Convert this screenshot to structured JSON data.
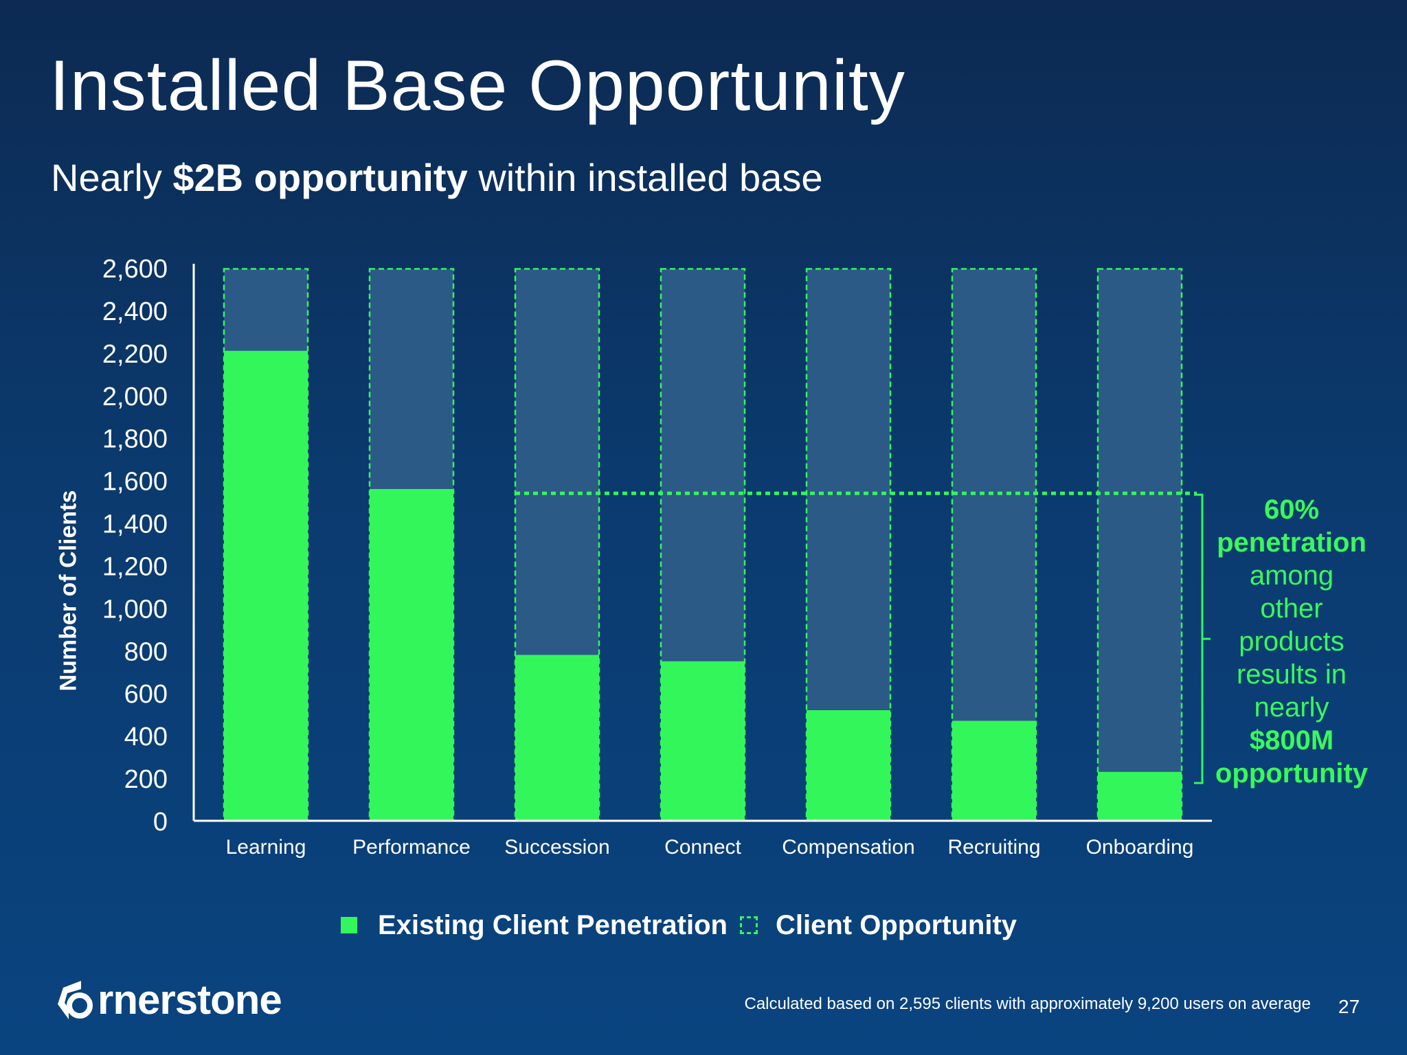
{
  "header": {
    "title": "Installed Base Opportunity",
    "subtitle_pre": "Nearly ",
    "subtitle_bold": "$2B opportunity",
    "subtitle_post": " within installed base"
  },
  "chart_data": {
    "type": "bar",
    "ylabel": "Number of Clients",
    "ylim": [
      0,
      2600
    ],
    "yticks": [
      "0",
      "200",
      "400",
      "600",
      "800",
      "1,000",
      "1,200",
      "1,400",
      "1,600",
      "1,800",
      "2,000",
      "2,200",
      "2,400",
      "2,600"
    ],
    "categories": [
      "Learning",
      "Performance",
      "Succession",
      "Connect",
      "Compensation",
      "Recruiting",
      "Onboarding"
    ],
    "series": [
      {
        "name": "Existing Client Penetration",
        "values": [
          2210,
          1560,
          780,
          750,
          520,
          470,
          230
        ]
      },
      {
        "name": "Client Opportunity",
        "values": [
          2595,
          2595,
          2595,
          2595,
          2595,
          2595,
          2595
        ]
      }
    ],
    "penetration_line": 1540,
    "colors": {
      "existing": "#33f75a",
      "opportunity_fill": "#2b5a87",
      "opportunity_border": "#33f75a"
    }
  },
  "annotation": {
    "line1": "60%",
    "line2": "penetration",
    "line3": "among",
    "line4": "other",
    "line5": "products",
    "line6": "results in",
    "line7": "nearly",
    "line8": "$800M",
    "line9": "opportunity"
  },
  "legend": {
    "existing": "Existing Client Penetration",
    "opportunity": "Client Opportunity"
  },
  "footer": {
    "logo_text": "rnerstone",
    "note": "Calculated based on 2,595 clients with approximately 9,200 users on average",
    "page": "27"
  }
}
